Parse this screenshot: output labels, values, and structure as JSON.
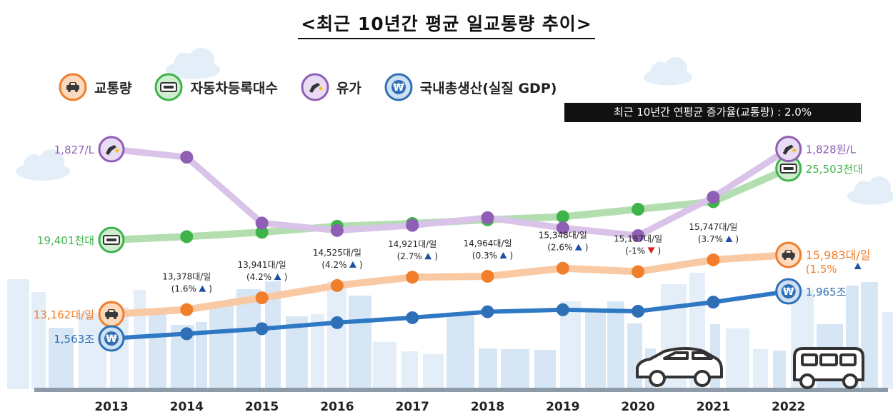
{
  "title": "<최근 10년간 평균 일교통량 추이>",
  "legend": [
    {
      "label": "교통량",
      "icon": "car-icon",
      "color": "#f07e2a",
      "ring": "#fdd9bd"
    },
    {
      "label": "자동차등록대수",
      "icon": "license-plate-icon",
      "color": "#3db34a",
      "ring": "#cfeecf"
    },
    {
      "label": "유가",
      "icon": "fuel-nozzle-icon",
      "color": "#8e5fb5",
      "ring": "#e8dbf3"
    },
    {
      "label": "국내총생산(실질 GDP)",
      "icon": "won-icon",
      "color": "#2f6fb5",
      "ring": "#cfe0f3"
    }
  ],
  "cagr_note": "최근 10년간 연평균 증가율(교통량) : 2.0%",
  "chart_data": {
    "type": "line",
    "x": [
      "2013",
      "2014",
      "2015",
      "2016",
      "2017",
      "2018",
      "2019",
      "2020",
      "2021",
      "2022"
    ],
    "series": [
      {
        "name": "교통량",
        "color": "#f07e2a",
        "line_color": "#f9c9a3",
        "values": [
          13162,
          13378,
          13941,
          14525,
          14921,
          14964,
          15348,
          15187,
          15747,
          15983
        ],
        "labels": [
          "",
          "13,378대/일",
          "13,941대/일",
          "14,525대/일",
          "14,921대/일",
          "14,964대/일",
          "15,348대/일",
          "15,187대/일",
          "15,747대/일",
          ""
        ],
        "changes": [
          "",
          "(1.6%",
          "(4.2%",
          "(4.2%",
          "(2.7%",
          "(0.3%",
          "(2.6%",
          "(-1%",
          "(3.7%",
          ""
        ],
        "direction": [
          "",
          "up",
          "up",
          "up",
          "up",
          "up",
          "up",
          "down",
          "up",
          ""
        ],
        "start_label": "13,162대/일",
        "end_label": "15,983대/일",
        "end_change": "(1.5%"
      },
      {
        "name": "자동차등록대수",
        "color": "#3db34a",
        "line_color": "#b3deaf",
        "values": [
          19401,
          19680,
          20053,
          20565,
          20803,
          21124,
          21386,
          22024,
          22670,
          25503
        ],
        "start_label": "19,401천대",
        "end_label": "25,503천대"
      },
      {
        "name": "유가",
        "color": "#8e5fb5",
        "line_color": "#d9c3e8",
        "values": [
          1827,
          1796,
          1539,
          1510,
          1530,
          1560,
          1520,
          1490,
          1640,
          1828
        ],
        "start_label": "1,827/L",
        "end_label": "1,828원/L"
      },
      {
        "name": "국내총생산(실질 GDP)",
        "color": "#2f6fb5",
        "line_color": "#2f78c4",
        "values": [
          1563,
          1603,
          1646,
          1698,
          1740,
          1791,
          1808,
          1795,
          1873,
          1965
        ],
        "start_label": "1,563조",
        "end_label": "1,965조"
      }
    ]
  }
}
